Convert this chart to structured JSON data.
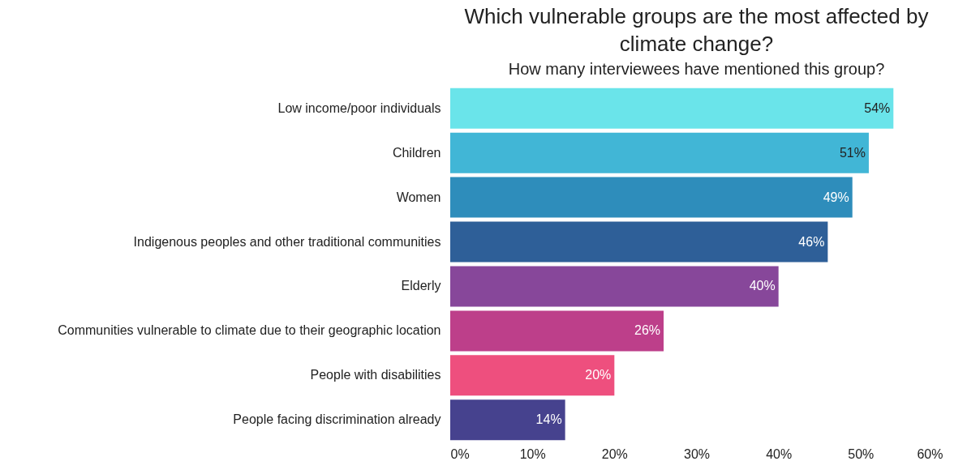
{
  "chart_data": {
    "type": "bar",
    "orientation": "horizontal",
    "title": "Which vulnerable groups are the most affected by climate change?",
    "subtitle": "How many interviewees have mentioned this group?",
    "categories": [
      "Low income/poor individuals",
      "Children",
      "Women",
      "Indigenous peoples and other traditional communities",
      "Elderly",
      "Communities vulnerable to climate due to their geographic location",
      "People with disabilities",
      "People facing discrimination already"
    ],
    "values": [
      54,
      51,
      49,
      46,
      40,
      26,
      20,
      14
    ],
    "value_labels": [
      "54%",
      "51%",
      "49%",
      "46%",
      "40%",
      "26%",
      "20%",
      "14%"
    ],
    "colors": [
      "#6ae4ea",
      "#41b6d6",
      "#2e8dbb",
      "#2e5f98",
      "#87479a",
      "#bd3f8a",
      "#ee4f7e",
      "#46428e"
    ],
    "xlim": [
      0,
      60
    ],
    "xticks": [
      {
        "value": 0,
        "label": "0%"
      },
      {
        "value": 10,
        "label": "10%"
      },
      {
        "value": 20,
        "label": "20%"
      },
      {
        "value": 30,
        "label": "30%"
      },
      {
        "value": 40,
        "label": "40%"
      },
      {
        "value": 50,
        "label": "50%"
      },
      {
        "value": 60,
        "label": "60%"
      }
    ],
    "grid": false,
    "legend": false
  }
}
